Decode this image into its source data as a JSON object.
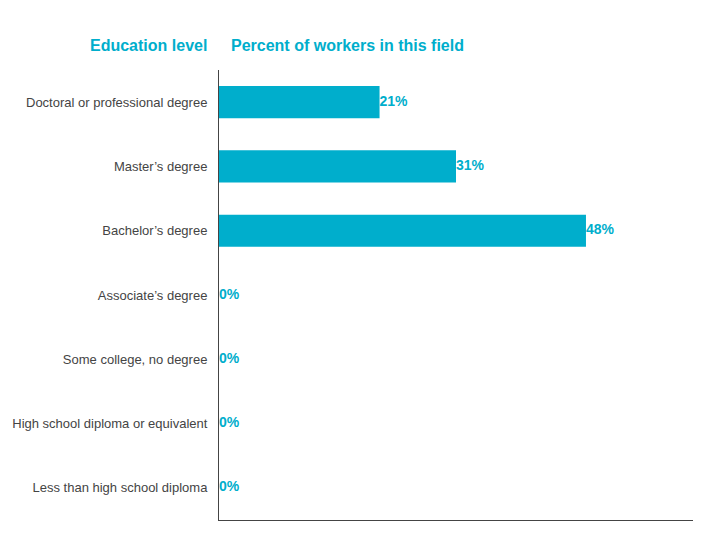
{
  "chart_data": {
    "type": "bar",
    "orientation": "horizontal",
    "categories": [
      "Doctoral or professional degree",
      "Master’s degree",
      "Bachelor’s degree",
      "Associate’s degree",
      "Some college, no degree",
      "High school diploma or equivalent",
      "Less than high school diploma"
    ],
    "values": [
      21,
      31,
      48,
      0,
      0,
      0,
      0
    ],
    "value_labels": [
      "21%",
      "31%",
      "48%",
      "0%",
      "0%",
      "0%",
      "0%"
    ],
    "data_labels": true,
    "color": "#00AECC",
    "y_label": "Education level",
    "x_label": "Percent of workers in this field",
    "xlim": [
      0,
      62
    ],
    "tick_labels": "y",
    "grid": false
  }
}
